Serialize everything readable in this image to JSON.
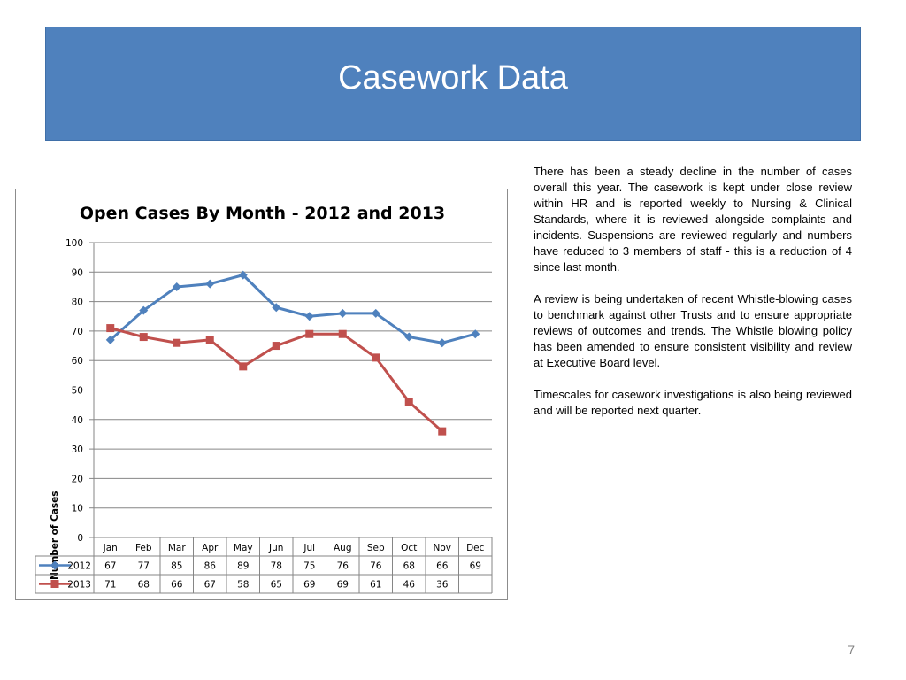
{
  "slide": {
    "title": "Casework Data",
    "page_number": "7",
    "paragraphs": [
      "There has been a steady decline in the number of cases overall this year. The casework is kept under close review within HR and is reported weekly to Nursing & Clinical Standards, where it is reviewed alongside complaints and incidents. Suspensions are reviewed regularly and numbers have reduced to 3 members of staff - this is a reduction of 4 since last month.",
      "A review is being undertaken of recent Whistle-blowing cases to benchmark against other Trusts and to ensure appropriate reviews of outcomes and trends. The Whistle blowing policy has been amended to ensure consistent  visibility and review at Executive Board level.",
      "Timescales for casework investigations is also being reviewed and will be reported next quarter."
    ]
  },
  "colors": {
    "banner": "#4f81bd",
    "series_2012": "#4f81bd",
    "series_2013": "#c0504d",
    "gridline": "#868686"
  },
  "chart_data": {
    "type": "line",
    "title": "Open Cases By Month - 2012 and 2013",
    "xlabel": "",
    "ylabel": "Number of Cases",
    "ylim": [
      0,
      100
    ],
    "yticks": [
      0,
      10,
      20,
      30,
      40,
      50,
      60,
      70,
      80,
      90,
      100
    ],
    "grid": true,
    "legend": "data-table",
    "categories": [
      "Jan",
      "Feb",
      "Mar",
      "Apr",
      "May",
      "Jun",
      "Jul",
      "Aug",
      "Sep",
      "Oct",
      "Nov",
      "Dec"
    ],
    "series": [
      {
        "name": "2012",
        "values": [
          67,
          77,
          85,
          86,
          89,
          78,
          75,
          76,
          76,
          68,
          66,
          69
        ],
        "color": "#4f81bd",
        "marker": "diamond"
      },
      {
        "name": "2013",
        "values": [
          71,
          68,
          66,
          67,
          58,
          65,
          69,
          69,
          61,
          46,
          36,
          null
        ],
        "color": "#c0504d",
        "marker": "square"
      }
    ]
  }
}
